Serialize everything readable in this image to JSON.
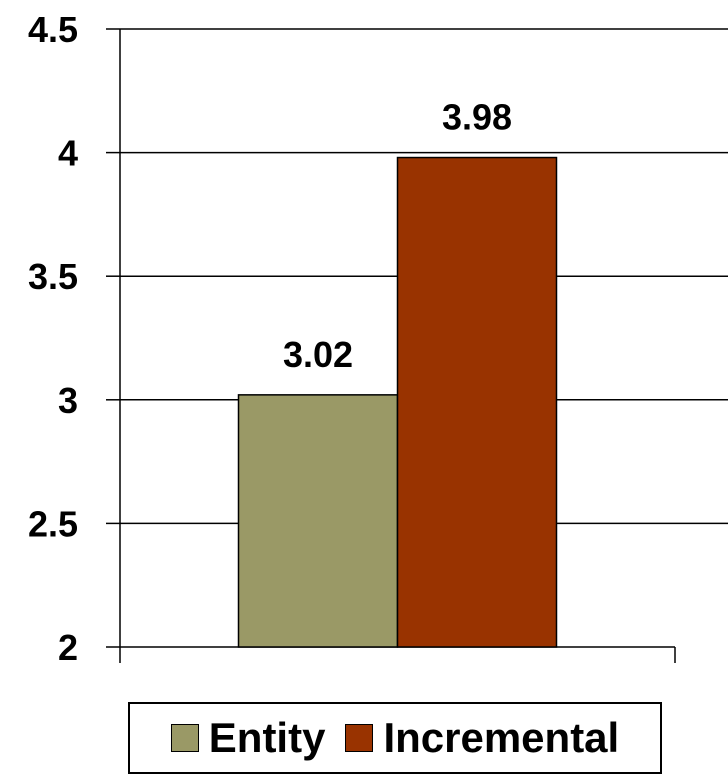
{
  "chart_data": {
    "type": "bar",
    "title": "",
    "xlabel": "",
    "ylabel": "",
    "ylim": [
      2,
      4.5
    ],
    "yticks": [
      2,
      2.5,
      3,
      3.5,
      4,
      4.5
    ],
    "ytick_labels": [
      "2",
      "2.5",
      "3",
      "3.5",
      "4",
      "4.5"
    ],
    "grid": true,
    "legend_position": "bottom",
    "series": [
      {
        "name": "Entity",
        "value": 3.02,
        "label": "3.02",
        "color": "#9a9966"
      },
      {
        "name": "Incremental",
        "value": 3.98,
        "label": "3.98",
        "color": "#993300"
      }
    ]
  },
  "legend": {
    "items": [
      {
        "label": "Entity",
        "color": "#9a9966"
      },
      {
        "label": "Incremental",
        "color": "#993300"
      }
    ]
  }
}
